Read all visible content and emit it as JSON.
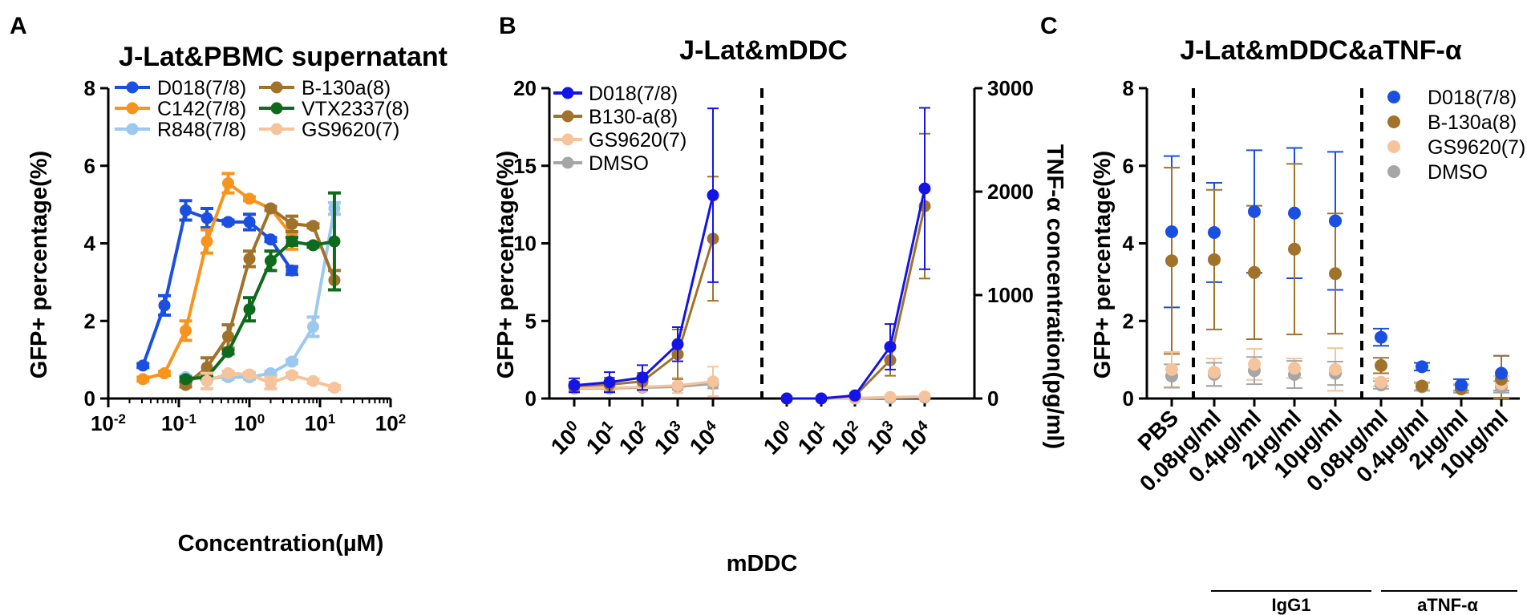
{
  "chart_data": [
    {
      "panel": "A",
      "type": "line",
      "title": "J-Lat&PBMC supernatant",
      "xlabel": "Concentration(µM)",
      "ylabel": "GFP+ percentage(%)",
      "xscale": "log",
      "xlim": [
        0.01,
        100
      ],
      "ylim": [
        0,
        8
      ],
      "yticks": [
        "0",
        "2",
        "4",
        "6",
        "8"
      ],
      "xticks": [
        {
          "base": "10",
          "exp": "-2"
        },
        {
          "base": "10",
          "exp": "-1"
        },
        {
          "base": "10",
          "exp": "0"
        },
        {
          "base": "10",
          "exp": "1"
        },
        {
          "base": "10",
          "exp": "2"
        }
      ],
      "legend_position": "top",
      "series": [
        {
          "name": "D018(7/8)",
          "color": "#1a4fe0",
          "x": [
            0.031,
            0.0625,
            0.125,
            0.25,
            0.5,
            1,
            2,
            4
          ],
          "y": [
            0.85,
            2.4,
            4.85,
            4.65,
            4.55,
            4.55,
            4.1,
            3.3
          ],
          "err": [
            0.05,
            0.25,
            0.25,
            0.25,
            0.05,
            0.2,
            0.05,
            0.1
          ]
        },
        {
          "name": "C142(7/8)",
          "color": "#f7941d",
          "x": [
            0.031,
            0.0625,
            0.125,
            0.25,
            0.5,
            1,
            2,
            4
          ],
          "y": [
            0.5,
            0.65,
            1.75,
            4.05,
            5.55,
            5.15,
            4.9,
            4.2
          ],
          "err": [
            0.05,
            0.05,
            0.25,
            0.3,
            0.25,
            0.05,
            0.05,
            0.35
          ]
        },
        {
          "name": "R848(7/8)",
          "color": "#9cc9f0",
          "x": [
            0.125,
            0.25,
            0.5,
            1,
            2,
            4,
            8,
            16
          ],
          "y": [
            0.55,
            0.52,
            0.55,
            0.55,
            0.65,
            0.95,
            1.85,
            4.9
          ],
          "err": [
            0.05,
            0.05,
            0.05,
            0.05,
            0.05,
            0.05,
            0.25,
            0.15
          ]
        },
        {
          "name": "B-130a(8)",
          "color": "#a0722a",
          "x": [
            0.125,
            0.25,
            0.5,
            1,
            2,
            4,
            8,
            16
          ],
          "y": [
            0.35,
            0.8,
            1.6,
            3.6,
            4.9,
            4.5,
            4.45,
            3.05
          ],
          "err": [
            0.05,
            0.25,
            0.3,
            0.2,
            0.05,
            0.2,
            0.05,
            0.25
          ]
        },
        {
          "name": "VTX2337(8)",
          "color": "#0e6b1e",
          "x": [
            0.125,
            0.25,
            0.5,
            1,
            2,
            4,
            8,
            16
          ],
          "y": [
            0.5,
            0.55,
            1.2,
            2.3,
            3.55,
            4.05,
            3.95,
            4.05
          ],
          "err": [
            0.05,
            0.05,
            0.05,
            0.3,
            0.25,
            0.1,
            0.05,
            1.25
          ]
        },
        {
          "name": "GS9620(7)",
          "color": "#f5c49c",
          "x": [
            0.25,
            0.5,
            1,
            2,
            4,
            8,
            16
          ],
          "y": [
            0.45,
            0.65,
            0.62,
            0.4,
            0.6,
            0.45,
            0.28
          ],
          "err": [
            0.2,
            0.05,
            0.05,
            0.15,
            0.05,
            0.05,
            0.05
          ]
        }
      ]
    },
    {
      "panel": "B",
      "type": "line",
      "title": "J-Lat&mDDC",
      "xlabel": "mDDC",
      "ylabel": "GFP+ percentage(%)",
      "y2label": "TNF-α concentration(pg/ml)",
      "ylim": [
        0,
        20
      ],
      "y2lim": [
        0,
        3000
      ],
      "yticks": [
        "0",
        "5",
        "10",
        "15",
        "20"
      ],
      "y2ticks": [
        "0",
        "1000",
        "2000",
        "3000"
      ],
      "xticks": [
        {
          "base": "10",
          "exp": "0"
        },
        {
          "base": "10",
          "exp": "1"
        },
        {
          "base": "10",
          "exp": "2"
        },
        {
          "base": "10",
          "exp": "3"
        },
        {
          "base": "10",
          "exp": "4"
        },
        {
          "base": "10",
          "exp": "0"
        },
        {
          "base": "10",
          "exp": "1"
        },
        {
          "base": "10",
          "exp": "2"
        },
        {
          "base": "10",
          "exp": "3"
        },
        {
          "base": "10",
          "exp": "4"
        }
      ],
      "legend_position": "top-left",
      "series": [
        {
          "name": "D018(7/8)",
          "color": "#1414e6",
          "gfp": [
            0.85,
            1.05,
            1.35,
            3.5,
            13.1
          ],
          "gfp_err": [
            0.45,
            0.65,
            0.8,
            1.1,
            5.6
          ],
          "tnf": [
            0,
            0,
            30,
            500,
            2030
          ],
          "tnf_err": [
            0,
            0,
            20,
            220,
            780
          ]
        },
        {
          "name": "B130-a(8)",
          "color": "#a0722a",
          "gfp": [
            0.8,
            0.9,
            1.1,
            2.85,
            10.3
          ],
          "gfp_err": [
            0.3,
            0.45,
            0.55,
            1.6,
            4.0
          ],
          "tnf": [
            0,
            0,
            25,
            370,
            1860
          ],
          "tnf_err": [
            0,
            0,
            15,
            150,
            700
          ]
        },
        {
          "name": "GS9620(7)",
          "color": "#f5c49c",
          "gfp": [
            0.7,
            0.7,
            0.75,
            0.85,
            1.1
          ],
          "gfp_err": [
            0.15,
            0.2,
            0.25,
            0.5,
            0.95
          ],
          "tnf": [
            0,
            0,
            5,
            15,
            20
          ],
          "tnf_err": [
            0,
            0,
            5,
            10,
            15
          ]
        },
        {
          "name": "DMSO",
          "color": "#a6a6a6",
          "gfp": [
            0.65,
            0.65,
            0.7,
            0.75,
            0.95
          ],
          "gfp_err": [
            0.1,
            0.15,
            0.15,
            0.2,
            0.3
          ],
          "tnf": [
            0,
            0,
            0,
            5,
            10
          ],
          "tnf_err": [
            0,
            0,
            0,
            5,
            5
          ]
        }
      ]
    },
    {
      "panel": "C",
      "type": "scatter",
      "title": "J-Lat&mDDC&aTNF-α",
      "ylabel": "GFP+ percentage(%)",
      "ylim": [
        0,
        8
      ],
      "yticks": [
        "0",
        "2",
        "4",
        "6",
        "8"
      ],
      "categories": [
        "PBS",
        "0.08μg/ml",
        "0.4μg/ml",
        "2μg/ml",
        "10μg/ml",
        "0.08μg/ml",
        "0.4μg/ml",
        "2μg/ml",
        "10μg/ml"
      ],
      "groups": [
        {
          "label": "IgG1"
        },
        {
          "label": "aTNF-α"
        }
      ],
      "legend_position": "top-right",
      "series": [
        {
          "name": "D018(7/8)",
          "color": "#1a4fe0",
          "y": [
            4.3,
            4.28,
            4.82,
            4.78,
            4.58,
            1.58,
            0.82,
            0.35,
            0.65
          ],
          "err": [
            1.95,
            1.28,
            1.58,
            1.68,
            1.78,
            0.22,
            0.1,
            0.15,
            0.45
          ]
        },
        {
          "name": "B-130a(8)",
          "color": "#a0722a",
          "y": [
            3.55,
            3.58,
            3.25,
            3.85,
            3.22,
            0.85,
            0.32,
            0.25,
            0.5
          ],
          "err": [
            2.4,
            1.8,
            1.72,
            2.2,
            1.55,
            0.2,
            0.1,
            0.1,
            0.6
          ]
        },
        {
          "name": "GS9620(7)",
          "color": "#f5c49c",
          "y": [
            0.75,
            0.68,
            0.88,
            0.78,
            0.75,
            0.42,
            0.32,
            0.28,
            0.38
          ],
          "err": [
            0.45,
            0.35,
            0.4,
            0.25,
            0.55,
            0.1,
            0.1,
            0.1,
            0.2
          ]
        },
        {
          "name": "DMSO",
          "color": "#a6a6a6",
          "y": [
            0.58,
            0.62,
            0.72,
            0.62,
            0.65,
            0.35,
            0.3,
            0.25,
            0.3
          ],
          "err": [
            0.3,
            0.3,
            0.35,
            0.35,
            0.3,
            0.1,
            0.1,
            0.1,
            0.15
          ]
        }
      ]
    }
  ]
}
